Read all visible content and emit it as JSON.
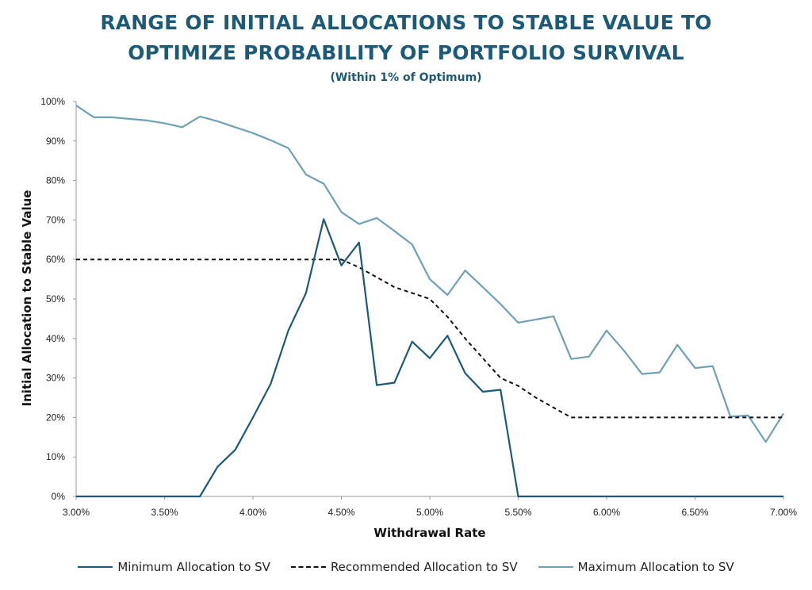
{
  "chart_data": {
    "type": "line",
    "title_line1": "RANGE OF INITIAL ALLOCATIONS TO STABLE VALUE TO",
    "title_line2": "OPTIMIZE PROBABILITY OF PORTFOLIO SURVIVAL",
    "subtitle": "(Within 1% of Optimum)",
    "xlabel": "Withdrawal Rate",
    "ylabel": "Initial Allocation to Stable Value",
    "xlim": [
      3.0,
      7.0
    ],
    "ylim": [
      0,
      100
    ],
    "x_ticks": [
      "3.00%",
      "3.50%",
      "4.00%",
      "4.50%",
      "5.00%",
      "5.50%",
      "6.00%",
      "6.50%",
      "7.00%"
    ],
    "y_ticks": [
      "0%",
      "10%",
      "20%",
      "30%",
      "40%",
      "50%",
      "60%",
      "70%",
      "80%",
      "90%",
      "100%"
    ],
    "grid": false,
    "legend_position": "bottom",
    "x": [
      3.0,
      3.1,
      3.2,
      3.3,
      3.4,
      3.5,
      3.6,
      3.7,
      3.8,
      3.9,
      4.0,
      4.1,
      4.2,
      4.3,
      4.4,
      4.5,
      4.6,
      4.7,
      4.8,
      4.9,
      5.0,
      5.1,
      5.2,
      5.3,
      5.4,
      5.5,
      5.6,
      5.7,
      5.8,
      5.9,
      6.0,
      6.1,
      6.2,
      6.3,
      6.4,
      6.5,
      6.6,
      6.7,
      6.8,
      6.9,
      7.0
    ],
    "series": [
      {
        "name": "Minimum Allocation to SV",
        "color": "#1d5a77",
        "style": "solid",
        "values": [
          0,
          0,
          0,
          0,
          0,
          0,
          0,
          0,
          7.5,
          11.8,
          20,
          28.5,
          42,
          51.5,
          70.2,
          58.5,
          64.3,
          28.2,
          28.8,
          39.2,
          35,
          40.7,
          31.2,
          26.5,
          27,
          0,
          0,
          0,
          0,
          0,
          0,
          0,
          0,
          0,
          0,
          0,
          0,
          0,
          0,
          0,
          0
        ]
      },
      {
        "name": "Recommended Allocation to SV",
        "color": "#111111",
        "style": "dashed",
        "values": [
          60,
          60,
          60,
          60,
          60,
          60,
          60,
          60,
          60,
          60,
          60,
          60,
          60,
          60,
          60,
          60,
          58,
          55.5,
          53,
          51.5,
          50,
          45.5,
          40,
          35,
          30,
          28,
          25,
          22.5,
          20,
          20,
          20,
          20,
          20,
          20,
          20,
          20,
          20,
          20,
          20,
          20,
          20
        ]
      },
      {
        "name": "Maximum Allocation to SV",
        "color": "#6fa0b8",
        "style": "solid",
        "values": [
          99,
          96,
          96,
          95.6,
          95.2,
          94.5,
          93.5,
          96.2,
          95,
          93.5,
          92,
          90.2,
          88.2,
          81.5,
          79.2,
          72,
          69,
          70.5,
          67.2,
          63.8,
          55,
          51,
          57.2,
          53,
          48.7,
          44,
          44.8,
          45.6,
          34.8,
          35.4,
          42,
          36.8,
          31,
          31.4,
          38.4,
          32.5,
          33,
          20.2,
          20.5,
          13.8,
          21
        ]
      }
    ]
  }
}
